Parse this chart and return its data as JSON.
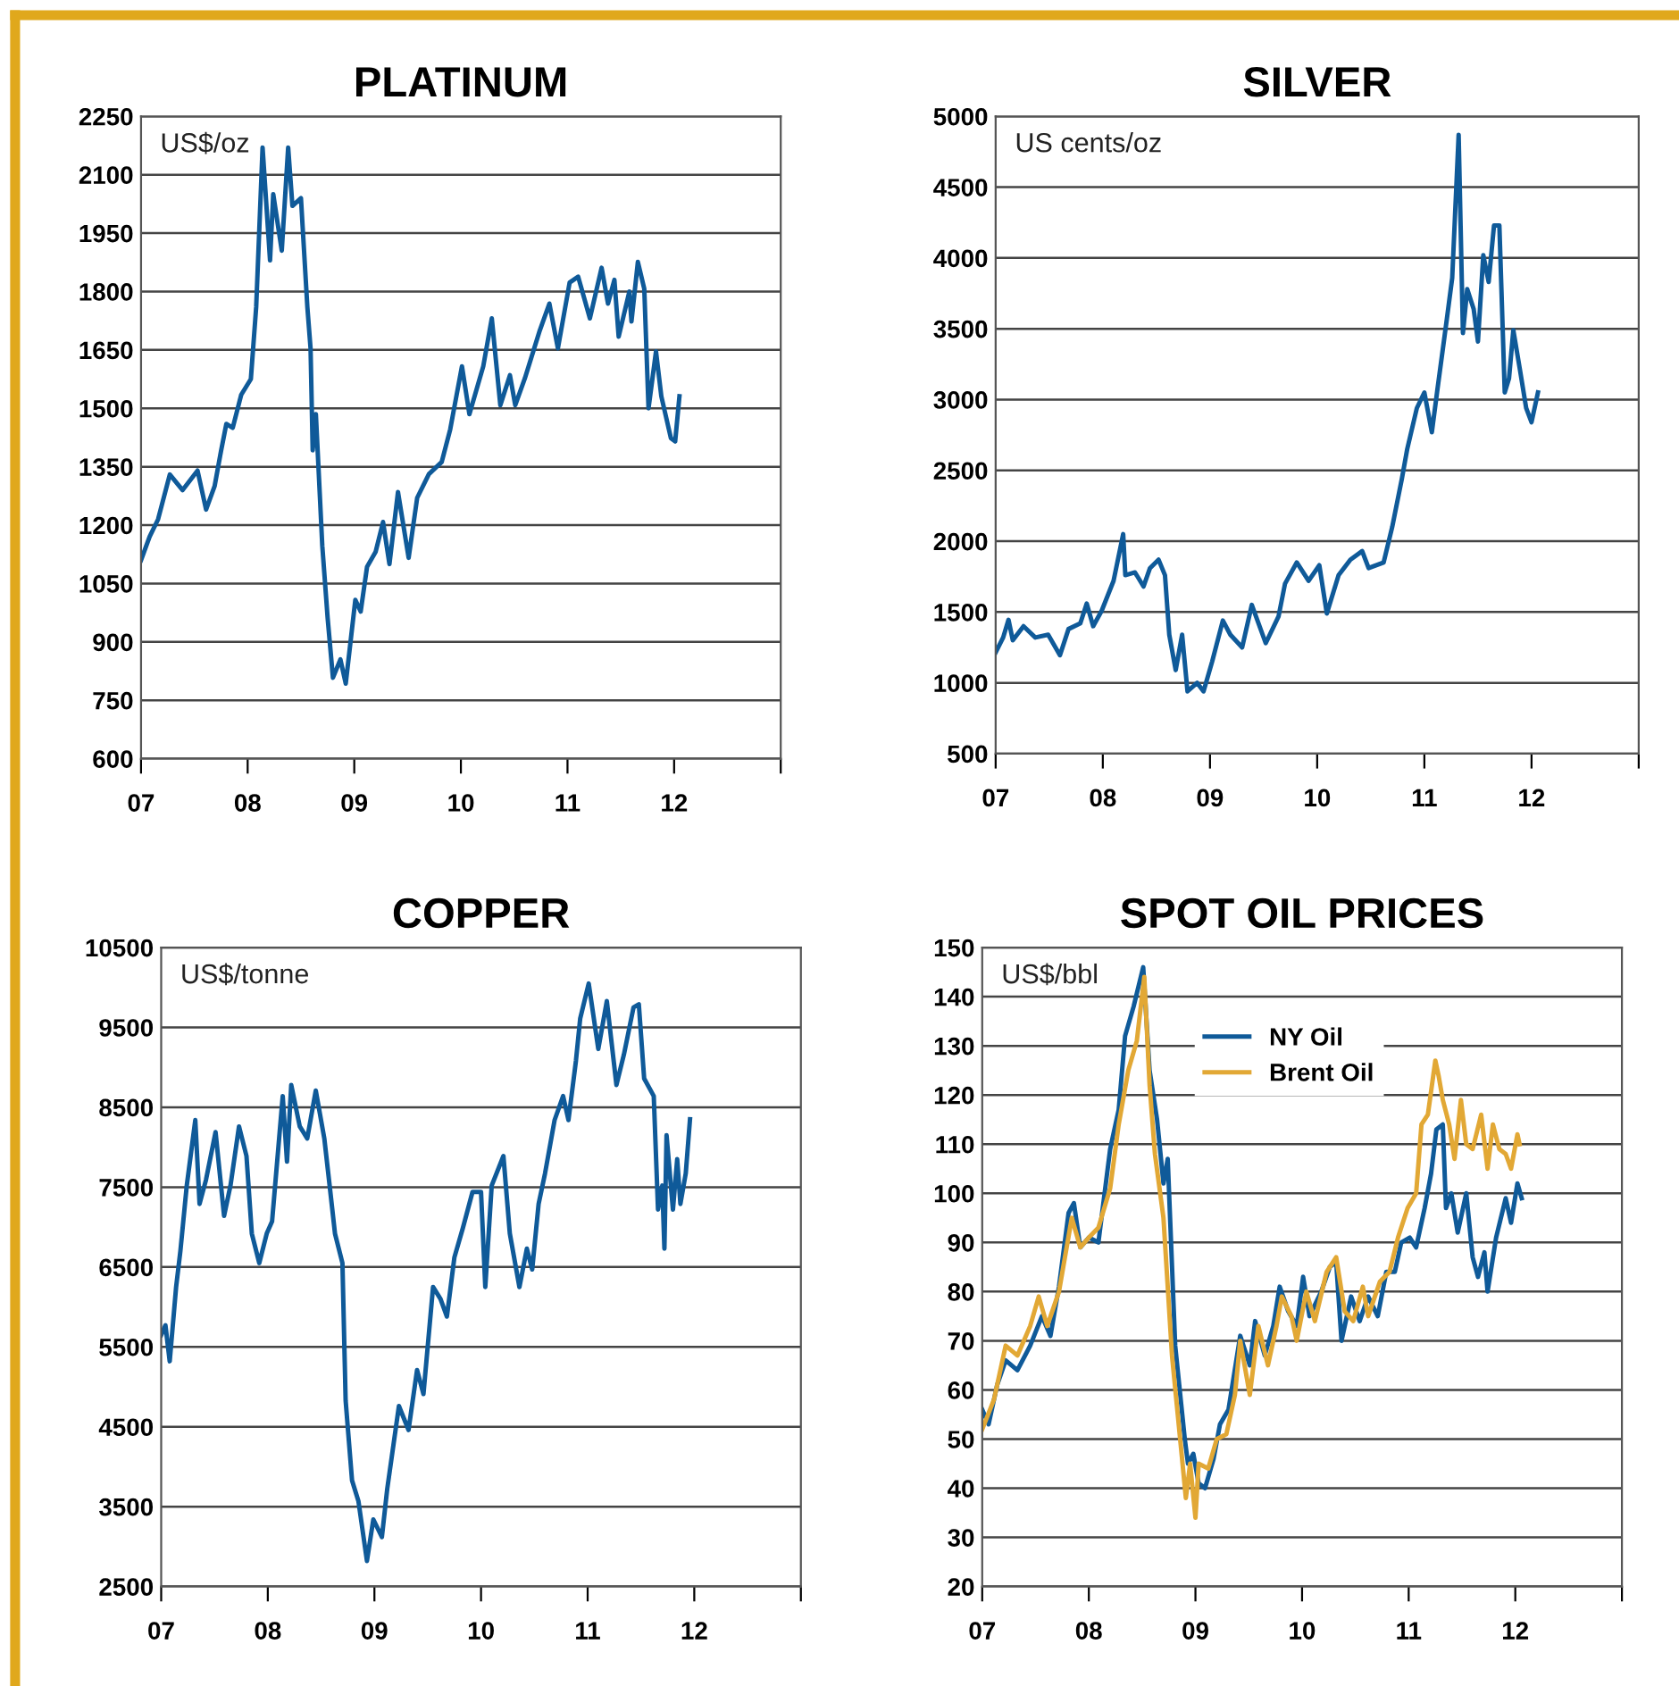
{
  "chart_data": [
    {
      "type": "line",
      "title": "PLATINUM",
      "ylabel": "US$/oz",
      "grid": "y",
      "legend": false,
      "xlim": [
        2007,
        2013
      ],
      "xticks": [
        {
          "value": 2007,
          "label": "07"
        },
        {
          "value": 2008,
          "label": "08"
        },
        {
          "value": 2009,
          "label": "09"
        },
        {
          "value": 2010,
          "label": "10"
        },
        {
          "value": 2011,
          "label": "11"
        },
        {
          "value": 2012,
          "label": "12"
        },
        {
          "value": 2013,
          "label": null
        }
      ],
      "ylim": [
        600,
        2250
      ],
      "yticks": [
        600,
        750,
        900,
        1050,
        1200,
        1350,
        1500,
        1650,
        1800,
        1950,
        2100,
        2250
      ],
      "series": [
        {
          "color": "#0f5a99",
          "x": [
            2007.0,
            2007.08,
            2007.16,
            2007.27,
            2007.39,
            2007.53,
            2007.61,
            2007.69,
            2007.75,
            2007.8,
            2007.86,
            2007.94,
            2008.03,
            2008.08,
            2008.14,
            2008.21,
            2008.24,
            2008.32,
            2008.38,
            2008.42,
            2008.5,
            2008.56,
            2008.59,
            2008.61,
            2008.64,
            2008.7,
            2008.75,
            2008.8,
            2008.87,
            2008.92,
            2009.01,
            2009.06,
            2009.12,
            2009.2,
            2009.27,
            2009.33,
            2009.41,
            2009.51,
            2009.59,
            2009.7,
            2009.82,
            2009.9,
            2010.01,
            2010.08,
            2010.21,
            2010.29,
            2010.37,
            2010.46,
            2010.51,
            2010.6,
            2010.74,
            2010.83,
            2010.91,
            2011.02,
            2011.1,
            2011.21,
            2011.32,
            2011.38,
            2011.44,
            2011.48,
            2011.58,
            2011.6,
            2011.66,
            2011.72,
            2011.76,
            2011.83,
            2011.88,
            2011.97,
            2012.01,
            2012.05
          ],
          "values": [
            1110,
            1170,
            1215,
            1330,
            1290,
            1340,
            1240,
            1300,
            1390,
            1460,
            1450,
            1535,
            1575,
            1760,
            2170,
            1880,
            2050,
            1905,
            2170,
            2020,
            2040,
            1760,
            1654,
            1392,
            1485,
            1147,
            962,
            808,
            855,
            793,
            1008,
            978,
            1093,
            1131,
            1208,
            1100,
            1285,
            1116,
            1270,
            1331,
            1362,
            1446,
            1608,
            1485,
            1608,
            1731,
            1508,
            1585,
            1508,
            1577,
            1700,
            1769,
            1654,
            1823,
            1838,
            1731,
            1861,
            1769,
            1830,
            1684,
            1800,
            1723,
            1876,
            1807,
            1500,
            1646,
            1531,
            1423,
            1415,
            1531
          ]
        }
      ]
    },
    {
      "type": "line",
      "title": "SILVER",
      "ylabel": "US cents/oz",
      "grid": "y",
      "legend": false,
      "xlim": [
        2007,
        2013
      ],
      "xticks": [
        {
          "value": 2007,
          "label": "07"
        },
        {
          "value": 2008,
          "label": "08"
        },
        {
          "value": 2009,
          "label": "09"
        },
        {
          "value": 2010,
          "label": "10"
        },
        {
          "value": 2011,
          "label": "11"
        },
        {
          "value": 2012,
          "label": "12"
        },
        {
          "value": 2013,
          "label": null
        }
      ],
      "ylim": [
        500,
        5000
      ],
      "yticks": [
        500,
        1000,
        1500,
        2000,
        2500,
        3000,
        3500,
        4000,
        4500,
        5000
      ],
      "series": [
        {
          "color": "#0f5a99",
          "x": [
            2007.0,
            2007.07,
            2007.12,
            2007.16,
            2007.26,
            2007.37,
            2007.49,
            2007.6,
            2007.68,
            2007.79,
            2007.85,
            2007.91,
            2007.99,
            2008.1,
            2008.19,
            2008.21,
            2008.3,
            2008.38,
            2008.44,
            2008.52,
            2008.58,
            2008.62,
            2008.68,
            2008.74,
            2008.79,
            2008.88,
            2008.94,
            2009.02,
            2009.12,
            2009.19,
            2009.3,
            2009.39,
            2009.52,
            2009.64,
            2009.7,
            2009.81,
            2009.92,
            2010.02,
            2010.09,
            2010.2,
            2010.31,
            2010.42,
            2010.48,
            2010.62,
            2010.7,
            2010.79,
            2010.84,
            2010.93,
            2011.0,
            2011.07,
            2011.12,
            2011.21,
            2011.26,
            2011.32,
            2011.36,
            2011.4,
            2011.46,
            2011.5,
            2011.55,
            2011.6,
            2011.65,
            2011.7,
            2011.75,
            2011.79,
            2011.83,
            2011.89,
            2011.95,
            2012.0,
            2012.06
          ],
          "values": [
            1215,
            1320,
            1445,
            1300,
            1400,
            1320,
            1340,
            1195,
            1380,
            1420,
            1560,
            1400,
            1510,
            1720,
            2050,
            1760,
            1780,
            1680,
            1810,
            1870,
            1760,
            1340,
            1090,
            1340,
            940,
            1000,
            940,
            1150,
            1440,
            1340,
            1250,
            1550,
            1280,
            1470,
            1700,
            1850,
            1720,
            1830,
            1490,
            1760,
            1870,
            1930,
            1810,
            1850,
            2100,
            2440,
            2650,
            2940,
            3050,
            2770,
            3060,
            3570,
            3860,
            4870,
            3470,
            3780,
            3640,
            3410,
            4020,
            3830,
            4230,
            4230,
            3050,
            3150,
            3490,
            3220,
            2940,
            2840,
            3050
          ]
        }
      ]
    },
    {
      "type": "line",
      "title": "COPPER",
      "ylabel": "US$/tonne",
      "grid": "y",
      "legend": false,
      "xlim": [
        2007,
        2013
      ],
      "xticks": [
        {
          "value": 2007,
          "label": "07"
        },
        {
          "value": 2008,
          "label": "08"
        },
        {
          "value": 2009,
          "label": "09"
        },
        {
          "value": 2010,
          "label": "10"
        },
        {
          "value": 2011,
          "label": "11"
        },
        {
          "value": 2012,
          "label": "12"
        },
        {
          "value": 2013,
          "label": null
        }
      ],
      "ylim": [
        2500,
        10500
      ],
      "yticks": [
        2500,
        3500,
        4500,
        5500,
        6500,
        7500,
        8500,
        9500,
        10500
      ],
      "series": [
        {
          "color": "#0f5a99",
          "x": [
            2007.0,
            2007.04,
            2007.08,
            2007.14,
            2007.18,
            2007.24,
            2007.32,
            2007.36,
            2007.42,
            2007.51,
            2007.59,
            2007.65,
            2007.73,
            2007.8,
            2007.85,
            2007.92,
            2007.99,
            2008.04,
            2008.14,
            2008.18,
            2008.22,
            2008.3,
            2008.37,
            2008.45,
            2008.53,
            2008.58,
            2008.63,
            2008.7,
            2008.73,
            2008.79,
            2008.85,
            2008.93,
            2008.99,
            2009.07,
            2009.12,
            2009.23,
            2009.32,
            2009.4,
            2009.46,
            2009.55,
            2009.62,
            2009.68,
            2009.75,
            2009.83,
            2009.92,
            2010.0,
            2010.04,
            2010.1,
            2010.21,
            2010.27,
            2010.36,
            2010.43,
            2010.48,
            2010.54,
            2010.6,
            2010.69,
            2010.77,
            2010.82,
            2010.89,
            2010.93,
            2011.01,
            2011.1,
            2011.18,
            2011.27,
            2011.34,
            2011.43,
            2011.48,
            2011.53,
            2011.62,
            2011.66,
            2011.7,
            2011.72,
            2011.74,
            2011.8,
            2011.84,
            2011.87,
            2011.92,
            2011.96
          ],
          "values": [
            5650,
            5770,
            5320,
            6250,
            6700,
            7520,
            8340,
            7290,
            7590,
            8190,
            7140,
            7520,
            8260,
            7890,
            6920,
            6550,
            6920,
            7070,
            8640,
            7820,
            8780,
            8260,
            8110,
            8710,
            8110,
            7520,
            6920,
            6550,
            4830,
            3830,
            3570,
            2820,
            3340,
            3120,
            3720,
            4760,
            4460,
            5210,
            4910,
            6250,
            6100,
            5880,
            6620,
            6990,
            7440,
            7440,
            6250,
            7520,
            7890,
            6920,
            6250,
            6730,
            6470,
            7290,
            7670,
            8340,
            8640,
            8340,
            9080,
            9610,
            10050,
            9230,
            9830,
            8780,
            9160,
            9750,
            9790,
            8860,
            8640,
            7220,
            7520,
            6730,
            8150,
            7220,
            7850,
            7290,
            7670,
            8350
          ]
        }
      ]
    },
    {
      "type": "line",
      "title": "SPOT OIL PRICES",
      "ylabel": "US$/bbl",
      "grid": "y",
      "legend": "top",
      "xlim": [
        2007,
        2013
      ],
      "xticks": [
        {
          "value": 2007,
          "label": "07"
        },
        {
          "value": 2008,
          "label": "08"
        },
        {
          "value": 2009,
          "label": "09"
        },
        {
          "value": 2010,
          "label": "10"
        },
        {
          "value": 2011,
          "label": "11"
        },
        {
          "value": 2012,
          "label": "12"
        },
        {
          "value": 2013,
          "label": null
        }
      ],
      "ylim": [
        20,
        150
      ],
      "yticks": [
        20,
        30,
        40,
        50,
        60,
        70,
        80,
        90,
        100,
        110,
        120,
        130,
        140,
        150
      ],
      "series": [
        {
          "name": "NY Oil",
          "color": "#0f5a99",
          "x": [
            2007.0,
            2007.06,
            2007.14,
            2007.22,
            2007.33,
            2007.45,
            2007.56,
            2007.64,
            2007.72,
            2007.81,
            2007.86,
            2007.92,
            2008.0,
            2008.09,
            2008.2,
            2008.28,
            2008.34,
            2008.42,
            2008.51,
            2008.57,
            2008.64,
            2008.7,
            2008.74,
            2008.81,
            2008.9,
            2008.93,
            2008.98,
            2009.03,
            2009.09,
            2009.17,
            2009.23,
            2009.31,
            2009.42,
            2009.51,
            2009.56,
            2009.65,
            2009.73,
            2009.79,
            2009.87,
            2009.95,
            2010.01,
            2010.07,
            2010.18,
            2010.26,
            2010.32,
            2010.37,
            2010.46,
            2010.54,
            2010.62,
            2010.71,
            2010.79,
            2010.87,
            2010.93,
            2011.01,
            2011.07,
            2011.15,
            2011.21,
            2011.26,
            2011.32,
            2011.35,
            2011.4,
            2011.46,
            2011.54,
            2011.6,
            2011.65,
            2011.71,
            2011.74,
            2011.82,
            2011.91,
            2011.96,
            2012.02,
            2012.06
          ],
          "values": [
            56,
            53,
            61,
            66,
            64,
            69,
            75,
            71,
            81,
            96,
            98,
            89,
            91,
            90,
            109,
            117,
            132,
            138,
            146,
            125,
            115,
            102,
            107,
            69,
            50,
            45,
            47,
            41,
            40,
            46,
            53,
            56,
            71,
            65,
            74,
            67,
            73,
            81,
            76,
            73,
            83,
            75,
            80,
            85,
            86,
            70,
            79,
            74,
            79,
            75,
            84,
            84,
            90,
            91,
            89,
            97,
            104,
            113,
            114,
            97,
            100,
            92,
            100,
            87,
            83,
            88,
            80,
            91,
            99,
            94,
            102,
            99
          ]
        },
        {
          "name": "Brent Oil",
          "color": "#e2a835",
          "x": [
            2007.0,
            2007.11,
            2007.22,
            2007.33,
            2007.45,
            2007.53,
            2007.61,
            2007.72,
            2007.84,
            2007.92,
            2008.0,
            2008.09,
            2008.2,
            2008.28,
            2008.37,
            2008.45,
            2008.52,
            2008.57,
            2008.62,
            2008.7,
            2008.78,
            2008.87,
            2008.91,
            2008.95,
            2009.0,
            2009.03,
            2009.12,
            2009.2,
            2009.29,
            2009.37,
            2009.42,
            2009.51,
            2009.59,
            2009.68,
            2009.76,
            2009.81,
            2009.9,
            2009.95,
            2010.04,
            2010.12,
            2010.23,
            2010.32,
            2010.4,
            2010.48,
            2010.57,
            2010.62,
            2010.73,
            2010.82,
            2010.9,
            2010.99,
            2011.07,
            2011.12,
            2011.18,
            2011.25,
            2011.28,
            2011.32,
            2011.38,
            2011.43,
            2011.49,
            2011.54,
            2011.6,
            2011.68,
            2011.74,
            2011.79,
            2011.85,
            2011.91,
            2011.96,
            2012.02,
            2012.04
          ],
          "values": [
            52,
            58,
            69,
            67,
            73,
            79,
            73,
            80,
            95,
            89,
            91,
            93,
            101,
            114,
            125,
            131,
            144,
            122,
            108,
            95,
            67,
            47,
            38,
            45,
            34,
            45,
            44,
            50,
            51,
            59,
            70,
            59,
            73,
            65,
            73,
            79,
            75,
            70,
            80,
            74,
            84,
            87,
            76,
            74,
            81,
            75,
            82,
            84,
            91,
            97,
            100,
            114,
            116,
            127,
            124,
            119,
            114,
            107,
            119,
            110,
            109,
            116,
            105,
            114,
            109,
            108,
            105,
            112,
            110
          ]
        }
      ]
    }
  ]
}
